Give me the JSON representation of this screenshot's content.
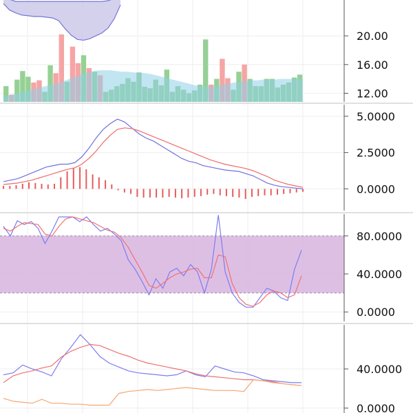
{
  "colors": {
    "background": "#ffffff",
    "grid": "#eeeeee",
    "separator": "#d6d6d6",
    "price_volume_up": "#8fcf8f",
    "price_volume_down": "#f4a0a0",
    "price_ma_area": "#90cfe8",
    "price_band_fill": "#c9c6e8",
    "price_band_line": "#7575d8",
    "macd_line": "#6f6fe0",
    "signal_line": "#f06a6a",
    "histogram": "#e85a5a",
    "stoch_k": "#7c7cf0",
    "stoch_d": "#f07070",
    "stoch_band": "#d8b4df",
    "dmi_plus": "#7c7cf0",
    "dmi_minus": "#f07070",
    "adx": "#f5a673"
  },
  "chart_data": [
    {
      "type": "bar",
      "panel": "price",
      "ylim": [
        10.8,
        25
      ],
      "y_ticks": [
        "12.00",
        "16.00",
        "20.00"
      ],
      "grid": true,
      "bars": [
        {
          "value": 13.0,
          "up": true
        },
        {
          "value": 11.8,
          "up": false
        },
        {
          "value": 13.9,
          "up": true
        },
        {
          "value": 15.1,
          "up": true
        },
        {
          "value": 14.3,
          "up": true
        },
        {
          "value": 13.5,
          "up": false
        },
        {
          "value": 13.8,
          "up": false
        },
        {
          "value": 12.2,
          "up": true
        },
        {
          "value": 15.9,
          "up": true
        },
        {
          "value": 14.8,
          "up": false
        },
        {
          "value": 20.2,
          "up": false
        },
        {
          "value": 13.6,
          "up": true
        },
        {
          "value": 18.5,
          "up": false
        },
        {
          "value": 16.2,
          "up": false
        },
        {
          "value": 17.3,
          "up": true
        },
        {
          "value": 15.5,
          "up": false
        },
        {
          "value": 15.0,
          "up": true
        },
        {
          "value": 14.5,
          "up": false
        },
        {
          "value": 12.2,
          "up": true
        },
        {
          "value": 12.5,
          "up": true
        },
        {
          "value": 13.0,
          "up": true
        },
        {
          "value": 13.3,
          "up": true
        },
        {
          "value": 14.1,
          "up": true
        },
        {
          "value": 13.6,
          "up": true
        },
        {
          "value": 14.9,
          "up": true
        },
        {
          "value": 12.9,
          "up": true
        },
        {
          "value": 12.7,
          "up": true
        },
        {
          "value": 13.9,
          "up": true
        },
        {
          "value": 13.1,
          "up": true
        },
        {
          "value": 15.3,
          "up": true
        },
        {
          "value": 12.2,
          "up": true
        },
        {
          "value": 13.0,
          "up": true
        },
        {
          "value": 12.5,
          "up": true
        },
        {
          "value": 12.0,
          "up": true
        },
        {
          "value": 12.4,
          "up": true
        },
        {
          "value": 13.2,
          "up": true
        },
        {
          "value": 19.5,
          "up": true
        },
        {
          "value": 13.2,
          "up": false
        },
        {
          "value": 14.0,
          "up": true
        },
        {
          "value": 16.8,
          "up": false
        },
        {
          "value": 14.1,
          "up": false
        },
        {
          "value": 12.5,
          "up": true
        },
        {
          "value": 15.0,
          "up": true
        },
        {
          "value": 16.0,
          "up": false
        },
        {
          "value": 14.0,
          "up": true
        },
        {
          "value": 13.0,
          "up": true
        },
        {
          "value": 13.0,
          "up": true
        },
        {
          "value": 14.0,
          "up": true
        },
        {
          "value": 14.0,
          "up": true
        },
        {
          "value": 12.8,
          "up": true
        },
        {
          "value": 13.2,
          "up": true
        },
        {
          "value": 13.5,
          "up": true
        },
        {
          "value": 14.2,
          "up": true
        },
        {
          "value": 14.6,
          "up": true
        }
      ],
      "moving_average": [
        11.5,
        11.7,
        11.9,
        12.1,
        12.3,
        12.5,
        12.7,
        12.9,
        13.1,
        13.3,
        13.5,
        13.8,
        14.1,
        14.4,
        14.7,
        14.9,
        15.1,
        15.2,
        15.2,
        15.2,
        15.1,
        15.0,
        15.0,
        14.9,
        14.9,
        14.8,
        14.7,
        14.5,
        14.3,
        14.1,
        13.9,
        13.7,
        13.5,
        13.3,
        13.1,
        13.0,
        12.9,
        12.9,
        13.0,
        13.2,
        13.4,
        13.5,
        13.6,
        13.7,
        13.8,
        13.8,
        13.9,
        13.9,
        13.9,
        14.0,
        14.0,
        14.0,
        14.0,
        14.0
      ],
      "band_upper": [
        25.5,
        25.1,
        24.8,
        24.8,
        24.8,
        24.8,
        24.8,
        24.8,
        24.8,
        24.8,
        24.8,
        24.8,
        24.8,
        24.8,
        24.8,
        24.8,
        24.8,
        24.9,
        25.2,
        25.6
      ],
      "band_lower": [
        24.5,
        23.6,
        23.2,
        22.9,
        22.8,
        22.7,
        22.7,
        22.6,
        22.5,
        22.1,
        21.0,
        20.1,
        19.5,
        19.4,
        19.6,
        20.0,
        20.4,
        21.1,
        22.4,
        24.3
      ]
    },
    {
      "type": "line",
      "panel": "macd",
      "ylim": [
        -1.5,
        5.8
      ],
      "y_ticks": [
        "0.0000",
        "2.5000",
        "5.0000"
      ],
      "grid": true,
      "series": [
        {
          "key": "macd",
          "values": [
            0.5,
            0.6,
            0.7,
            0.9,
            1.1,
            1.3,
            1.5,
            1.6,
            1.7,
            1.7,
            1.8,
            2.2,
            2.8,
            3.5,
            4.1,
            4.5,
            4.8,
            4.6,
            4.2,
            3.8,
            3.5,
            3.3,
            3.0,
            2.7,
            2.4,
            2.1,
            1.9,
            1.8,
            1.6,
            1.5,
            1.4,
            1.3,
            1.25,
            1.2,
            1.05,
            0.9,
            0.65,
            0.4,
            0.25,
            0.15,
            0.1,
            0.05,
            0.0
          ]
        },
        {
          "key": "signal",
          "values": [
            0.3,
            0.35,
            0.4,
            0.5,
            0.6,
            0.75,
            0.9,
            1.05,
            1.2,
            1.35,
            1.45,
            1.7,
            2.1,
            2.6,
            3.2,
            3.7,
            4.1,
            4.2,
            4.15,
            4.0,
            3.8,
            3.6,
            3.4,
            3.2,
            3.0,
            2.8,
            2.6,
            2.4,
            2.2,
            2.0,
            1.85,
            1.7,
            1.6,
            1.5,
            1.4,
            1.25,
            1.05,
            0.85,
            0.6,
            0.45,
            0.3,
            0.2,
            0.1
          ]
        }
      ],
      "histogram": [
        0.2,
        0.2,
        0.25,
        0.35,
        0.45,
        0.4,
        0.35,
        0.3,
        0.35,
        0.8,
        1.2,
        1.45,
        1.5,
        1.35,
        1.0,
        0.8,
        0.6,
        0.3,
        -0.1,
        -0.25,
        -0.35,
        -0.55,
        -0.6,
        -0.6,
        -0.6,
        -0.6,
        -0.55,
        -0.6,
        -0.65,
        -0.6,
        -0.55,
        -0.5,
        -0.4,
        -0.35,
        -0.45,
        -0.5,
        -0.55,
        -0.6,
        -0.7,
        -0.55,
        -0.5,
        -0.45,
        -0.45,
        -0.4,
        -0.35,
        -0.3,
        -0.25,
        -0.2
      ]
    },
    {
      "type": "line",
      "panel": "stochastic",
      "ylim": [
        -10,
        103
      ],
      "y_ticks": [
        "0.0000",
        "40.0000",
        "80.0000"
      ],
      "band": [
        20,
        80
      ],
      "grid": true,
      "series": [
        {
          "key": "k",
          "values": [
            90,
            80,
            96,
            92,
            95,
            88,
            72,
            85,
            100,
            100,
            100,
            95,
            100,
            92,
            85,
            88,
            82,
            75,
            55,
            45,
            32,
            18,
            35,
            25,
            42,
            46,
            38,
            50,
            42,
            20,
            45,
            102,
            42,
            20,
            10,
            5,
            5,
            15,
            25,
            22,
            15,
            12,
            45,
            65
          ]
        },
        {
          "key": "d",
          "values": [
            88,
            85,
            90,
            94,
            93,
            92,
            82,
            80,
            90,
            98,
            100,
            98,
            96,
            94,
            90,
            86,
            84,
            78,
            68,
            55,
            42,
            28,
            25,
            30,
            36,
            40,
            42,
            45,
            46,
            36,
            36,
            60,
            58,
            30,
            15,
            8,
            6,
            10,
            18,
            22,
            20,
            15,
            18,
            38
          ]
        }
      ]
    },
    {
      "type": "line",
      "panel": "dmi",
      "ylim": [
        -5,
        85
      ],
      "y_ticks": [
        "0.0000",
        "40.0000"
      ],
      "grid": true,
      "series": [
        {
          "key": "plus_di",
          "values": [
            34,
            36,
            44,
            40,
            37,
            33,
            50,
            62,
            75,
            65,
            53,
            46,
            42,
            38,
            36,
            35,
            34,
            33,
            34,
            38,
            34,
            32,
            43,
            40,
            37,
            36,
            33,
            29,
            28,
            27,
            26,
            26
          ]
        },
        {
          "key": "minus_di",
          "values": [
            26,
            33,
            36,
            38,
            41,
            43,
            52,
            58,
            62,
            65,
            64,
            60,
            56,
            53,
            49,
            46,
            44,
            42,
            40,
            38,
            35,
            33,
            32,
            31,
            30,
            29,
            29,
            28,
            27,
            25,
            24,
            23
          ]
        },
        {
          "key": "adx",
          "values": [
            10,
            7,
            6,
            5,
            9,
            5,
            5,
            4,
            4,
            3,
            3,
            3,
            15,
            17,
            18,
            19,
            18,
            19,
            20,
            21,
            20,
            19,
            18,
            18,
            18,
            17,
            29,
            28,
            26,
            25,
            24,
            23
          ]
        }
      ]
    }
  ]
}
